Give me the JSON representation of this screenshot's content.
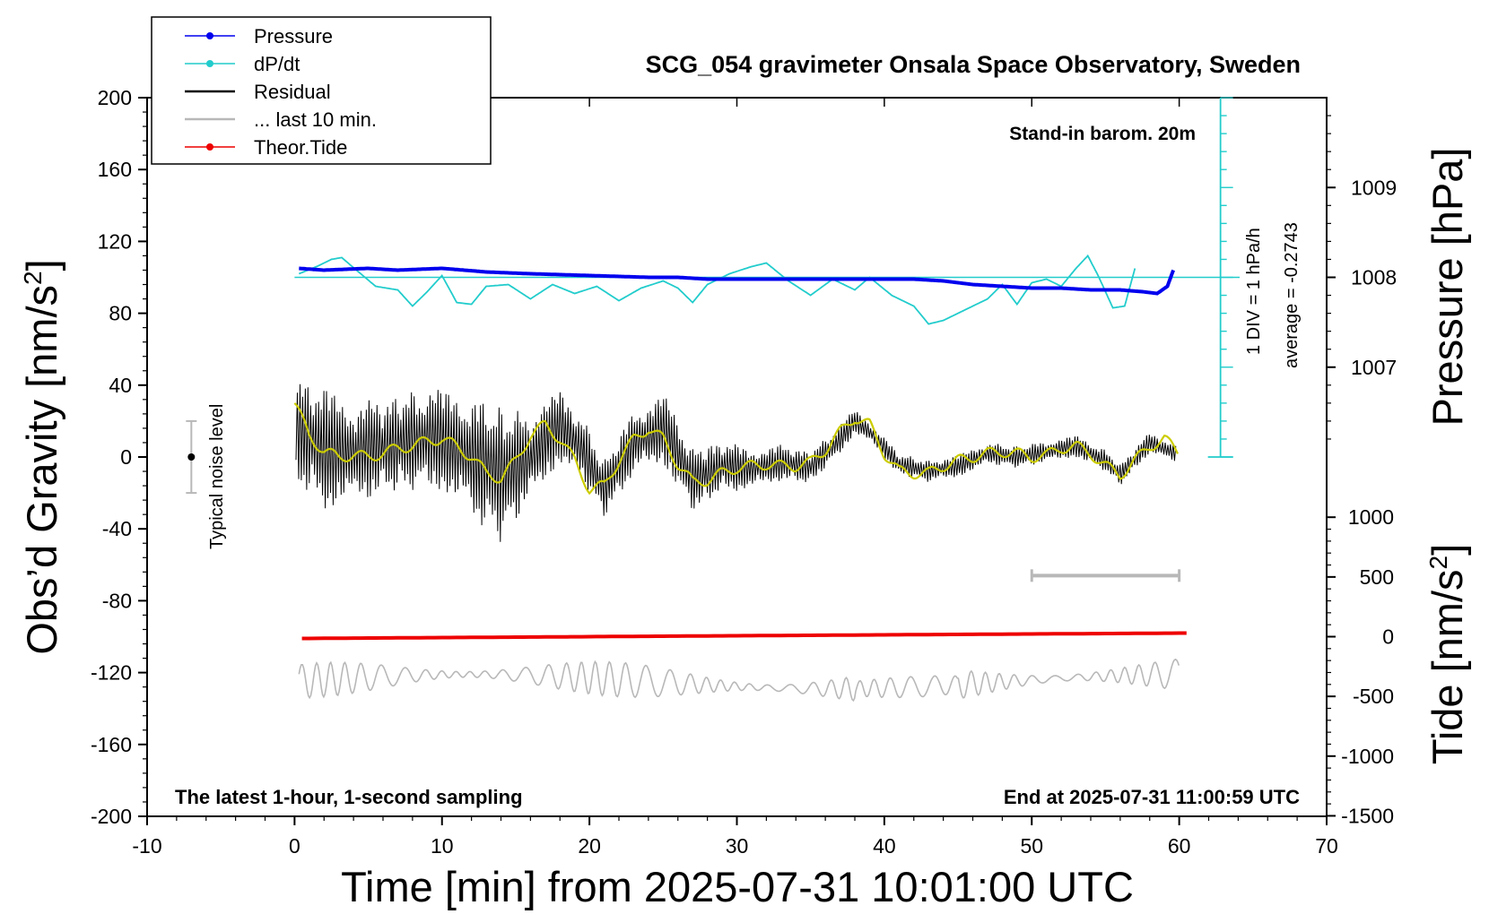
{
  "chart_data": {
    "type": "line",
    "title": "SCG_054 gravimeter Onsala Space Observatory, Sweden",
    "xlabel": "Time [min] from 2025-07-31 10:01:00 UTC",
    "ylabel_left": "Obs’d Gravity [nm/s",
    "ylabel_left_sup": "2",
    "ylabel_left_close": "]",
    "ylabel_right_pressure": "Pressure [hPa]",
    "ylabel_right_tide": "Tide [nm/s",
    "ylabel_right_tide_sup": "2",
    "ylabel_right_tide_close": "]",
    "xlim": [
      -10,
      70
    ],
    "ylim": [
      -200,
      200
    ],
    "x_ticks": [
      "-10",
      "0",
      "10",
      "20",
      "30",
      "40",
      "50",
      "60",
      "70"
    ],
    "y_ticks": [
      "-200",
      "-160",
      "-120",
      "-80",
      "-40",
      "0",
      "40",
      "80",
      "120",
      "160",
      "200"
    ],
    "pressure_axis": {
      "ticks": [
        "1007",
        "1008",
        "1009"
      ],
      "values": [
        1007,
        1008,
        1009
      ],
      "y_at_1008": 100,
      "y_per_hPa": 50
    },
    "tide_axis": {
      "ticks": [
        "-1500",
        "-1000",
        "-500",
        "0",
        "500",
        "1000"
      ],
      "values": [
        -1500,
        -1000,
        -500,
        0,
        500,
        1000
      ]
    },
    "annotations": {
      "stand_in": "Stand-in barom. 20m",
      "div_label": "1 DIV = 1 hPa/h",
      "average_label": "average = -0.2743",
      "noise_label": "Typical noise level",
      "latest": "The latest 1-hour, 1-second sampling",
      "end": "End at 2025-07-31 11:00:59 UTC"
    },
    "legend": [
      {
        "name": "Pressure",
        "color": "#0000ee",
        "marker": true
      },
      {
        "name": "dP/dt",
        "color": "#22cccc",
        "marker": true
      },
      {
        "name": "Residual",
        "color": "#000000",
        "marker": false
      },
      {
        "name": "... last 10 min.",
        "color": "#b8b8b8",
        "marker": false
      },
      {
        "name": "Theor.Tide",
        "color": "#ee0000",
        "marker": true
      }
    ],
    "series": [
      {
        "name": "Pressure",
        "color": "#0000ee",
        "x": [
          0.3,
          2,
          5,
          7,
          10,
          13,
          16,
          20,
          24,
          26,
          28,
          30,
          33,
          36,
          38,
          40,
          42,
          44,
          46,
          48,
          50,
          52,
          54,
          56,
          57.5,
          58.5,
          59.2,
          59.6
        ],
        "y": [
          105,
          104,
          105,
          104,
          105,
          103,
          102,
          101,
          100,
          100,
          99,
          99,
          99,
          99,
          99,
          99,
          99,
          98,
          96,
          95,
          94,
          94,
          93,
          93,
          92,
          91,
          95,
          104
        ]
      },
      {
        "name": "dP/dt",
        "color": "#22cccc",
        "x": [
          0.3,
          1.5,
          2.5,
          3.2,
          4.2,
          5.5,
          7,
          8,
          9,
          10,
          11,
          12,
          13,
          14.5,
          16,
          17.5,
          19,
          20.5,
          22,
          23.5,
          25,
          26,
          27,
          28,
          29.5,
          31,
          32,
          33.5,
          35,
          36.5,
          38,
          39,
          40.5,
          42,
          43,
          44,
          45.5,
          47,
          48,
          49,
          50,
          51,
          52,
          53,
          53.8,
          54.5,
          55.5,
          56.3,
          57
        ],
        "y": [
          102,
          106,
          110,
          111,
          104,
          95,
          93,
          84,
          92,
          101,
          86,
          85,
          95,
          96,
          88,
          96,
          91,
          95,
          87,
          94,
          98,
          94,
          86,
          96,
          102,
          106,
          108,
          98,
          90,
          99,
          93,
          100,
          90,
          84,
          74,
          76,
          82,
          88,
          96,
          85,
          97,
          99,
          95,
          105,
          112,
          101,
          83,
          84,
          105
        ]
      },
      {
        "name": "Residual",
        "color": "#000000",
        "x": [
          0,
          2,
          4,
          6,
          8,
          10,
          12,
          14,
          16,
          18,
          19.5,
          21,
          23,
          25,
          27,
          29,
          31,
          33,
          35,
          37,
          38,
          39,
          41,
          43,
          45,
          47,
          49,
          51,
          53,
          55,
          56,
          58,
          59.8
        ],
        "y": [
          15,
          5,
          2,
          6,
          9,
          10,
          0,
          -10,
          0,
          17,
          5,
          -18,
          8,
          16,
          -13,
          -5,
          -7,
          -3,
          -6,
          10,
          20,
          14,
          -4,
          -8,
          -5,
          2,
          0,
          3,
          6,
          -2,
          -10,
          8,
          2
        ],
        "amplitude": [
          30,
          34,
          30,
          26,
          28,
          28,
          34,
          38,
          24,
          20,
          18,
          16,
          18,
          20,
          18,
          14,
          12,
          10,
          9,
          8,
          7,
          6,
          6,
          6,
          6,
          6,
          6,
          6,
          6,
          6,
          6,
          6,
          6
        ]
      },
      {
        "name": "Residual (smoothed)",
        "color": "#cccc00",
        "x": [
          0,
          1,
          2,
          3,
          4,
          5,
          6,
          7,
          8,
          9,
          10,
          11,
          12,
          13,
          14,
          15,
          16,
          17,
          18,
          19,
          20,
          21,
          22,
          23,
          24,
          25,
          26,
          27,
          28,
          29,
          30,
          31,
          32,
          33,
          34,
          35,
          36,
          37,
          38,
          39,
          40,
          41,
          42,
          43,
          44,
          45,
          46,
          47,
          48,
          49,
          50,
          51,
          52,
          53,
          54,
          55,
          56,
          57,
          58,
          59,
          60
        ],
        "y": [
          30,
          12,
          3,
          0,
          1,
          0,
          2,
          5,
          6,
          9,
          10,
          6,
          0,
          -9,
          -12,
          -2,
          12,
          18,
          10,
          -2,
          -18,
          -16,
          -2,
          10,
          16,
          10,
          -4,
          -14,
          -13,
          -9,
          -6,
          -5,
          -4,
          -5,
          -5,
          -3,
          4,
          14,
          22,
          18,
          2,
          -8,
          -9,
          -9,
          -5,
          -2,
          0,
          2,
          3,
          2,
          0,
          1,
          5,
          6,
          2,
          -5,
          -10,
          -2,
          6,
          10,
          2
        ]
      },
      {
        "name": "... last 10 min.",
        "color": "#b8b8b8",
        "x": [
          0,
          60
        ],
        "y": [
          -125,
          -125
        ],
        "amplitude": 8
      },
      {
        "name": "Theor.Tide",
        "color": "#ee0000",
        "x": [
          0.5,
          10,
          20,
          30,
          40,
          50,
          60.5
        ],
        "y": [
          -101,
          -100.5,
          -100,
          -99.5,
          -99,
          -98.5,
          -98
        ]
      }
    ],
    "scale_bar_x": [
      50,
      60
    ],
    "scale_bar_y": -66,
    "noise_bar": {
      "x": -7,
      "y_low": -20,
      "y_high": 20,
      "center": 0
    }
  }
}
